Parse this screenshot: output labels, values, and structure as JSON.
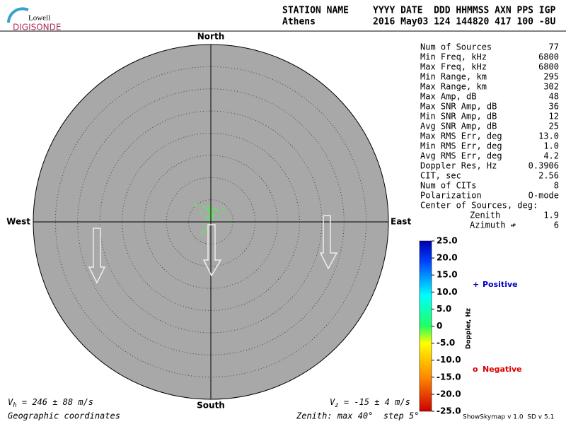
{
  "header": {
    "logo_top": "Lowell",
    "logo_bottom": "DIGISONDE",
    "station_label": "STATION NAME",
    "date_label": "YYYY DATE  DDD HHMMSS AXN PPS IGP",
    "station": "Athens",
    "date": "2016 May03 124 144820 417 100 -8U"
  },
  "stats": [
    [
      "Num of Sources",
      "77"
    ],
    [
      "Min Freq, kHz",
      "6800"
    ],
    [
      "Max Freq, kHz",
      "6800"
    ],
    [
      "Min Range, km",
      "295"
    ],
    [
      "Max Range, km",
      "302"
    ],
    [
      "Max Amp, dB",
      "48"
    ],
    [
      "Max SNR Amp, dB",
      "36"
    ],
    [
      "Min SNR Amp, dB",
      "12"
    ],
    [
      "Avg SNR Amp, dB",
      "25"
    ],
    [
      "Max RMS Err, deg",
      "13.0"
    ],
    [
      "Min RMS Err, deg",
      "1.0"
    ],
    [
      "Avg RMS Err, deg",
      "4.2"
    ],
    [
      "Doppler Res, Hz",
      "0.3906"
    ],
    [
      "CIT, sec",
      "2.56"
    ],
    [
      "Num of CITs",
      "8"
    ],
    [
      "Polarization",
      "O-mode"
    ],
    [
      "Center of Sources, deg:",
      null
    ],
    [
      "Zenith",
      "1.9"
    ],
    [
      "Azimuth ↫",
      "6"
    ]
  ],
  "chart_data": {
    "type": "polar-scatter",
    "directions": {
      "north": "North",
      "south": "South",
      "east": "East",
      "west": "West"
    },
    "rlim": [
      0,
      40
    ],
    "rticks": [
      5,
      10,
      15,
      20,
      25,
      30,
      35,
      40
    ],
    "x": [
      -3.4,
      -2.2,
      -1.6,
      -0.8,
      -0.5,
      -0.2,
      0.2,
      -0.3,
      0.3,
      0.6,
      1.0,
      1.4,
      2.9,
      1.8,
      0.3,
      -0.3,
      -0.8,
      -1.6,
      -1.9,
      4.3,
      -1.3,
      -0.6,
      0,
      0.3,
      -0.3
    ],
    "y": [
      3.8,
      2.2,
      3.4,
      3.0,
      2.6,
      2.2,
      1.9,
      1.4,
      1.1,
      1.6,
      2.9,
      2.6,
      2.9,
      1.3,
      0.3,
      -0.6,
      -1.3,
      -1.9,
      -2.6,
      0,
      1.0,
      0.6,
      2.2,
      2.9,
      3.5
    ],
    "color": "#55ee55",
    "marker": "+"
  },
  "colorbar": {
    "label": "Doppler, Hz",
    "ylim": [
      -25,
      25
    ],
    "yticks": [
      {
        "value": 25,
        "label": "25.0"
      },
      {
        "value": 20,
        "label": "20.0"
      },
      {
        "value": 15,
        "label": "15.0"
      },
      {
        "value": 10,
        "label": "10.0"
      },
      {
        "value": 5,
        "label": "5.0"
      },
      0,
      {
        "value": -5,
        "label": "-5.0"
      },
      {
        "value": -10,
        "label": "-10.0"
      },
      {
        "value": -15,
        "label": "-15.0"
      },
      {
        "value": -20,
        "label": "-20.0"
      },
      {
        "value": -25,
        "label": "-25.0"
      }
    ]
  },
  "legend": [
    {
      "symbol": "+",
      "name": "Positive",
      "color": "#0000cc"
    },
    {
      "symbol": "o",
      "name": "Negative",
      "color": "#dd0000"
    }
  ],
  "velocity": {
    "h": {
      "symbol": "V",
      "sub": "h",
      "text": " = 246 ± 88 m/s"
    },
    "z": {
      "symbol": "V",
      "sub": "z",
      "text": " = -15 ± 4 m/s"
    }
  },
  "footer": {
    "coords": "Geographic coordinates",
    "zenith": "Zenith: max 40°  step 5°",
    "version": "ShowSkymap v 1.0  SD v 5.1"
  }
}
